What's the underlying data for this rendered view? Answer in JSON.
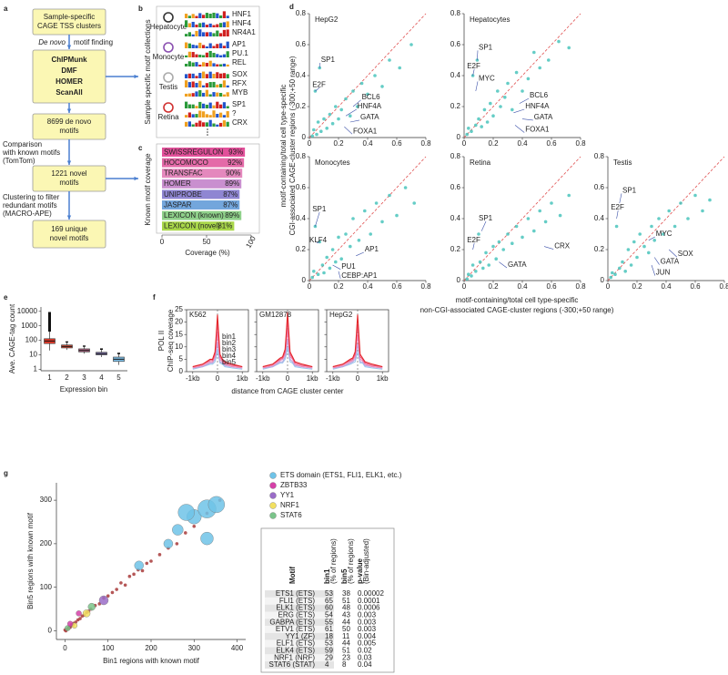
{
  "flowchart": {
    "letter": "a",
    "boxes": [
      [
        "Sample-specific",
        "CAGE TSS clusters"
      ],
      [
        "ChIPMunk",
        "DMF",
        "HOMER",
        "ScanAll"
      ],
      [
        "8699 de novo",
        "motifs"
      ],
      [
        "1221 novel",
        "motifs"
      ],
      [
        "169 unique",
        "novel motifs"
      ]
    ],
    "arrow_labels": [
      [
        "De novo",
        "motif finding"
      ],
      [
        "Comparison",
        "with known motifs",
        "(TomTom)"
      ],
      [
        "Clustering to filter",
        "redundant motifs",
        "(MACRO-APE)"
      ]
    ]
  },
  "motif_collections": {
    "letter": "b",
    "ylabel": "Sample specific motif collections",
    "groups": [
      {
        "name": "Hepatocyte",
        "motifs": [
          "HNF1",
          "HNF4",
          "NR4A1"
        ]
      },
      {
        "name": "Monocyte",
        "motifs": [
          "AP1",
          "PU.1",
          "REL"
        ]
      },
      {
        "name": "Testis",
        "motifs": [
          "SOX",
          "RFX",
          "MYB"
        ]
      },
      {
        "name": "Retina",
        "motifs": [
          "SP1",
          "?",
          "CRX"
        ]
      }
    ]
  },
  "coverage": {
    "letter": "c",
    "type": "bar",
    "orientation": "horizontal",
    "categories": [
      "SWISSREGULON",
      "HOCOMOCO",
      "TRANSFAC",
      "HOMER",
      "UNIPROBE",
      "JASPAR",
      "LEXICON (known)",
      "LEXICON (novel)"
    ],
    "values": [
      93,
      92,
      90,
      89,
      87,
      87,
      89,
      81
    ],
    "value_labels": [
      "93%",
      "92%",
      "90%",
      "89%",
      "87%",
      "87%",
      "89%",
      "81%"
    ],
    "colors": [
      "#e2509a",
      "#e46aa8",
      "#e488bd",
      "#c98fcf",
      "#8f86d2",
      "#73a6dc",
      "#8fd08a",
      "#a9d74a"
    ],
    "xlim": [
      0,
      100
    ],
    "xticks": [
      0,
      50,
      100
    ],
    "xlabel": "Coverage (%)",
    "ylabel": "Known motif coverage"
  },
  "scatter_d": {
    "letter": "d",
    "type": "scatter",
    "xlabel": [
      "motif-containing/total cell type-specific",
      "non-CGI-associated CAGE-cluster regions (-300;+50 range)"
    ],
    "ylabel": [
      "motif-containing/total cell type-specific",
      "CGI-associated CAGE-cluster regions (-300;+50 range)"
    ],
    "xlim": [
      0,
      0.8
    ],
    "ylim": [
      0,
      0.8
    ],
    "xticks": [
      0,
      0.2,
      0.4,
      0.6,
      0.8
    ],
    "yticks": [
      0,
      0.2,
      0.4,
      0.6,
      0.8
    ],
    "color": "#3fc0b8",
    "diagonal_color": "#e05050",
    "annotation_color": "#3a4fa8",
    "panels": [
      {
        "title": "HepG2",
        "x": [
          0.02,
          0.03,
          0.04,
          0.05,
          0.06,
          0.07,
          0.08,
          0.1,
          0.12,
          0.14,
          0.16,
          0.18,
          0.2,
          0.22,
          0.25,
          0.28,
          0.3,
          0.33,
          0.36,
          0.4,
          0.45,
          0.5,
          0.55,
          0.62,
          0.7
        ],
        "y": [
          0.01,
          0.05,
          0.3,
          0.02,
          0.1,
          0.45,
          0.04,
          0.12,
          0.06,
          0.15,
          0.09,
          0.2,
          0.12,
          0.18,
          0.25,
          0.14,
          0.3,
          0.2,
          0.35,
          0.28,
          0.4,
          0.33,
          0.5,
          0.45,
          0.6
        ],
        "annotations": [
          "SP1",
          "E2F",
          "BCL6",
          "HNF4A",
          "GATA",
          "FOXA1"
        ]
      },
      {
        "title": "Hepatocytes",
        "x": [
          0.02,
          0.03,
          0.05,
          0.06,
          0.08,
          0.09,
          0.1,
          0.12,
          0.14,
          0.16,
          0.18,
          0.2,
          0.23,
          0.25,
          0.28,
          0.3,
          0.33,
          0.36,
          0.4,
          0.44,
          0.48,
          0.52,
          0.58,
          0.65,
          0.72
        ],
        "y": [
          0.02,
          0.06,
          0.04,
          0.4,
          0.08,
          0.5,
          0.12,
          0.07,
          0.18,
          0.1,
          0.22,
          0.14,
          0.3,
          0.2,
          0.26,
          0.35,
          0.18,
          0.42,
          0.3,
          0.38,
          0.55,
          0.45,
          0.5,
          0.62,
          0.58
        ],
        "annotations": [
          "SP1",
          "E2F",
          "MYC",
          "BCL6",
          "HNF4A",
          "GATA",
          "FOXA1"
        ]
      },
      {
        "title": "Monocytes",
        "x": [
          0.02,
          0.03,
          0.04,
          0.06,
          0.07,
          0.09,
          0.1,
          0.12,
          0.14,
          0.16,
          0.18,
          0.2,
          0.22,
          0.25,
          0.28,
          0.3,
          0.34,
          0.38,
          0.42,
          0.46,
          0.5,
          0.55,
          0.6,
          0.66,
          0.72
        ],
        "y": [
          0.02,
          0.06,
          0.35,
          0.04,
          0.25,
          0.1,
          0.05,
          0.15,
          0.08,
          0.2,
          0.12,
          0.28,
          0.14,
          0.3,
          0.22,
          0.4,
          0.26,
          0.45,
          0.3,
          0.5,
          0.38,
          0.55,
          0.42,
          0.6,
          0.5
        ],
        "annotations": [
          "SP1",
          "KLF4",
          "AP1",
          "PU1",
          "CEBP:AP1"
        ]
      },
      {
        "title": "Retina",
        "x": [
          0.02,
          0.03,
          0.05,
          0.06,
          0.08,
          0.1,
          0.11,
          0.13,
          0.15,
          0.17,
          0.2,
          0.22,
          0.24,
          0.27,
          0.3,
          0.33,
          0.36,
          0.4,
          0.44,
          0.48,
          0.52,
          0.56,
          0.6,
          0.66,
          0.72
        ],
        "y": [
          0.01,
          0.04,
          0.03,
          0.1,
          0.06,
          0.3,
          0.12,
          0.08,
          0.18,
          0.1,
          0.22,
          0.14,
          0.25,
          0.2,
          0.3,
          0.24,
          0.35,
          0.28,
          0.4,
          0.32,
          0.45,
          0.38,
          0.5,
          0.42,
          0.55
        ],
        "annotations": [
          "SP1",
          "E2F",
          "GATA",
          "CRX"
        ]
      },
      {
        "title": "Testis",
        "x": [
          0.02,
          0.03,
          0.05,
          0.06,
          0.08,
          0.1,
          0.12,
          0.14,
          0.16,
          0.18,
          0.2,
          0.22,
          0.25,
          0.28,
          0.3,
          0.32,
          0.35,
          0.38,
          0.42,
          0.46,
          0.5,
          0.55,
          0.6,
          0.65,
          0.7
        ],
        "y": [
          0.02,
          0.05,
          0.04,
          0.35,
          0.08,
          0.12,
          0.06,
          0.2,
          0.1,
          0.25,
          0.15,
          0.3,
          0.22,
          0.18,
          0.35,
          0.26,
          0.4,
          0.3,
          0.45,
          0.35,
          0.5,
          0.4,
          0.55,
          0.45,
          0.52
        ],
        "annotations": [
          "SP1",
          "E2F",
          "MYC",
          "SOX",
          "GATA",
          "JUN"
        ]
      }
    ]
  },
  "boxplot": {
    "letter": "e",
    "type": "box",
    "ylabel": "Ave. CAGE-tag count",
    "xlabel": "Expression bin",
    "categories": [
      "1",
      "2",
      "3",
      "4",
      "5"
    ],
    "median": [
      90,
      38,
      20,
      12,
      5
    ],
    "q1": [
      60,
      30,
      16,
      10,
      3.5
    ],
    "q3": [
      130,
      48,
      26,
      15,
      7
    ],
    "whisker_low": [
      20,
      22,
      12,
      7,
      2
    ],
    "whisker_high": [
      400,
      70,
      36,
      22,
      11
    ],
    "outlier_max": [
      9000,
      85,
      44,
      28,
      14
    ],
    "colors": [
      "#e03a2a",
      "#d8503a",
      "#b86a8a",
      "#8a7fbf",
      "#7fc0e8"
    ],
    "ylog": true,
    "ylim": [
      0.8,
      20000
    ],
    "yticks": [
      1,
      10,
      100,
      1000,
      10000
    ]
  },
  "profiles": {
    "letter": "f",
    "type": "line",
    "ylabel": [
      "POL II",
      "ChIP-seq coverage"
    ],
    "xlabel": "distance from CAGE cluster center",
    "xlim": [
      -1250,
      1250
    ],
    "xticks": [
      {
        "value": -1000,
        "label": "-1kb"
      },
      0,
      {
        "value": 1000,
        "label": "1kb"
      }
    ],
    "ylim": [
      0,
      25
    ],
    "yticks": [
      0,
      5,
      10,
      15,
      20,
      25
    ],
    "x": [
      -1000,
      -600,
      -300,
      -200,
      -100,
      -50,
      0,
      50,
      100,
      200,
      300,
      600,
      1000
    ],
    "legend": [
      {
        "name": "bin1",
        "color": "#e4262a"
      },
      {
        "name": "bin2",
        "color": "#ec5a7e"
      },
      {
        "name": "bin3",
        "color": "#f08ab8"
      },
      {
        "name": "bin4",
        "color": "#b9a6e0"
      },
      {
        "name": "bin5",
        "color": "#9cc8ee"
      }
    ],
    "panels": [
      {
        "title": "K562",
        "values": [
          [
            2,
            3,
            5,
            5,
            8,
            15,
            23,
            15,
            7,
            5,
            4,
            3,
            2
          ],
          [
            2,
            3,
            4.5,
            4.5,
            7,
            13,
            20,
            13,
            6,
            4.5,
            3.5,
            2.5,
            2
          ],
          [
            1.5,
            2.5,
            4,
            4,
            6,
            10,
            16,
            10,
            5,
            4,
            3,
            2,
            1.5
          ],
          [
            1.5,
            2,
            3.5,
            3.5,
            5,
            8,
            12,
            8,
            4,
            3.5,
            2.5,
            2,
            1.5
          ],
          [
            1,
            2,
            3,
            3,
            4,
            6,
            9,
            6,
            3.5,
            3,
            2,
            1.5,
            1
          ]
        ]
      },
      {
        "title": "GM12878",
        "values": [
          [
            2,
            3,
            5.5,
            6,
            9,
            16,
            24,
            16,
            8,
            6,
            4,
            3,
            2
          ],
          [
            2,
            3,
            5,
            5.5,
            8,
            14,
            21,
            14,
            7,
            5.5,
            3.5,
            2.5,
            2
          ],
          [
            1.5,
            2.5,
            4.5,
            5,
            7,
            11,
            17,
            11,
            6,
            5,
            3,
            2,
            1.5
          ],
          [
            1.5,
            2,
            4,
            4,
            6,
            9,
            13,
            9,
            5,
            4,
            2.5,
            2,
            1.5
          ],
          [
            1,
            2,
            3.5,
            3.5,
            5,
            7,
            10,
            7,
            4,
            3.5,
            2,
            1.5,
            1
          ]
        ]
      },
      {
        "title": "HepG2",
        "values": [
          [
            2,
            3,
            5,
            5.5,
            8,
            15,
            23,
            15,
            7,
            5.5,
            4,
            3,
            2
          ],
          [
            2,
            3,
            4.5,
            5,
            7,
            13,
            19,
            13,
            6,
            5,
            3.5,
            2.5,
            2
          ],
          [
            1.5,
            2.5,
            4,
            4.5,
            6,
            10,
            15,
            10,
            5,
            4.5,
            3,
            2,
            1.5
          ],
          [
            1.5,
            2,
            3.5,
            4,
            5,
            8,
            11,
            8,
            4,
            4,
            2.5,
            2,
            1.5
          ],
          [
            1,
            2,
            3,
            3.5,
            4,
            6,
            8,
            6,
            3.5,
            3.5,
            2,
            1.5,
            1
          ]
        ]
      }
    ]
  },
  "bubbles": {
    "letter": "g",
    "type": "scatter",
    "xlabel": "Bin1 regions with known motif",
    "ylabel": "Bin5 regions with known motif",
    "xlim": [
      -20,
      420
    ],
    "ylim": [
      -20,
      340
    ],
    "xticks": [
      0,
      100,
      200,
      300,
      400
    ],
    "yticks": [
      0,
      100,
      200,
      300
    ],
    "series": [
      {
        "name": "ETS domain (ETS1, FLI1, ELK1, etc.)",
        "color": "#6fc3e8",
        "x": [
          300,
          330,
          352,
          262,
          240,
          330,
          172,
          282
        ],
        "y": [
          262,
          280,
          290,
          232,
          200,
          212,
          150,
          272
        ],
        "sizes": [
          8,
          10,
          9,
          6,
          5,
          7,
          5,
          9
        ]
      },
      {
        "name": "ZBTB33",
        "color": "#d640a8",
        "x": [
          12,
          32
        ],
        "y": [
          16,
          40
        ],
        "sizes": [
          3,
          3
        ]
      },
      {
        "name": "YY1",
        "color": "#9a6cc8",
        "x": [
          90
        ],
        "y": [
          70
        ],
        "sizes": [
          5
        ]
      },
      {
        "name": "NRF1",
        "color": "#f2e060",
        "x": [
          50,
          22
        ],
        "y": [
          40,
          12
        ],
        "sizes": [
          4,
          3
        ]
      },
      {
        "name": "STAT6",
        "color": "#7ac48a",
        "x": [
          62,
          6
        ],
        "y": [
          55,
          6
        ],
        "sizes": [
          4,
          3
        ]
      },
      {
        "color": "#a83a3a",
        "x": [
          0,
          2,
          5,
          8,
          10,
          12,
          15,
          18,
          20,
          25,
          30,
          35,
          40,
          45,
          50,
          55,
          60,
          70,
          80,
          90,
          100,
          110,
          120,
          130,
          140,
          150,
          160,
          170,
          180,
          190,
          200,
          220,
          240,
          260,
          280,
          300,
          330,
          360
        ],
        "y": [
          2,
          0,
          4,
          6,
          9,
          8,
          14,
          12,
          17,
          20,
          25,
          28,
          34,
          36,
          42,
          45,
          50,
          58,
          62,
          75,
          80,
          88,
          95,
          110,
          105,
          125,
          130,
          140,
          138,
          155,
          160,
          175,
          190,
          200,
          225,
          240,
          270,
          300
        ]
      }
    ]
  },
  "table": {
    "columns": [
      {
        "label": "Motif"
      },
      {
        "label": "bin1",
        "note": "(% of regions)"
      },
      {
        "label": "bin5",
        "note": "(% of regions)"
      },
      {
        "label": "p-value",
        "note": "(Bin-adjusted)"
      }
    ],
    "rows": [
      [
        "ETS1 (ETS)",
        53,
        38,
        2e-05
      ],
      [
        "FLI1 (ETS)",
        65,
        51,
        0.0001
      ],
      [
        "ELK1 (ETS)",
        60,
        48,
        0.0006
      ],
      [
        "ERG (ETS)",
        54,
        43,
        0.003
      ],
      [
        "GABPA (ETS)",
        55,
        44,
        0.003
      ],
      [
        "ETV1 (ETS)",
        61,
        50,
        0.003
      ],
      [
        "YY1 (ZF)",
        18,
        11,
        0.004
      ],
      [
        "ELF1 (ETS)",
        53,
        44,
        0.005
      ],
      [
        "ELK4 (ETS)",
        59,
        51,
        0.02
      ],
      [
        "NRF1 (NRF)",
        29,
        23,
        0.03
      ],
      [
        "STAT6 (STAT)",
        4,
        8,
        0.04
      ]
    ]
  }
}
